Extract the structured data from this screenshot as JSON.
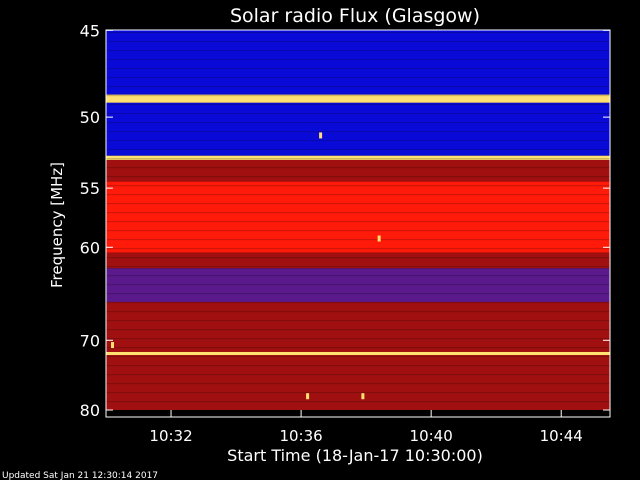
{
  "footer": {
    "updated": "Updated Sat Jan 21 12:30:14 2017"
  },
  "colors": {
    "background": "#000000",
    "axis": "#ffffff",
    "low": "#0a0ad8",
    "mid": "#a01010",
    "high": "#ff1a0a",
    "peak": "#ffe070"
  },
  "chart_data": {
    "type": "heatmap",
    "title": "Solar radio Flux (Glasgow)",
    "xlabel": "Start Time (18-Jan-17 10:30:00)",
    "ylabel": "Frequency [MHz]",
    "xlim": [
      0,
      15.5
    ],
    "ylim": [
      80,
      44.5
    ],
    "y_ticks": [
      45,
      50,
      55,
      60,
      70,
      80
    ],
    "x_ticks": [
      {
        "minutes": 2,
        "label": "10:32"
      },
      {
        "minutes": 6,
        "label": "10:36"
      },
      {
        "minutes": 10,
        "label": "10:40"
      },
      {
        "minutes": 14,
        "label": "10:44"
      }
    ],
    "bands": [
      {
        "from": 44.5,
        "to": 48.6,
        "level": "low"
      },
      {
        "from": 48.6,
        "to": 49.1,
        "level": "peak"
      },
      {
        "from": 49.1,
        "to": 52.6,
        "level": "low"
      },
      {
        "from": 52.6,
        "to": 52.9,
        "level": "peak"
      },
      {
        "from": 52.9,
        "to": 54.5,
        "level": "mid"
      },
      {
        "from": 54.5,
        "to": 60.5,
        "level": "high"
      },
      {
        "from": 60.5,
        "to": 62.0,
        "level": "mid"
      },
      {
        "from": 62.0,
        "to": 65.5,
        "level": "low-mid"
      },
      {
        "from": 65.5,
        "to": 71.5,
        "level": "mid"
      },
      {
        "from": 71.5,
        "to": 71.9,
        "level": "peak"
      },
      {
        "from": 71.9,
        "to": 80,
        "level": "mid"
      }
    ],
    "bursts": [
      {
        "minutes": 0.2,
        "freq": 70.6
      },
      {
        "minutes": 6.2,
        "freq": 77.8
      },
      {
        "minutes": 7.9,
        "freq": 77.8
      },
      {
        "minutes": 8.4,
        "freq": 59.2
      },
      {
        "minutes": 6.6,
        "freq": 51.2
      }
    ]
  }
}
